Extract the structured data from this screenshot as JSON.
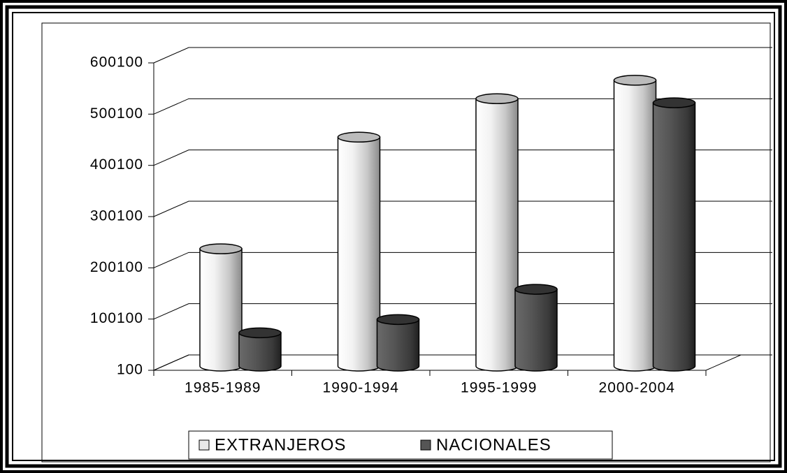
{
  "chart_data": {
    "type": "bar3d",
    "categories": [
      "1985-1989",
      "1990-1994",
      "1995-1999",
      "2000-2004"
    ],
    "series": [
      {
        "name": "EXTRANJEROS",
        "color": "#e8e8e8",
        "values": [
          229000,
          447000,
          522000,
          558000
        ]
      },
      {
        "name": "NACIONALES",
        "color": "#555555",
        "values": [
          65000,
          91000,
          150000,
          514000
        ]
      }
    ],
    "ylim": [
      100,
      600100
    ],
    "yticks": [
      100,
      100100,
      200100,
      300100,
      400100,
      500100,
      600100
    ],
    "grid": true,
    "legend": "bottom"
  }
}
